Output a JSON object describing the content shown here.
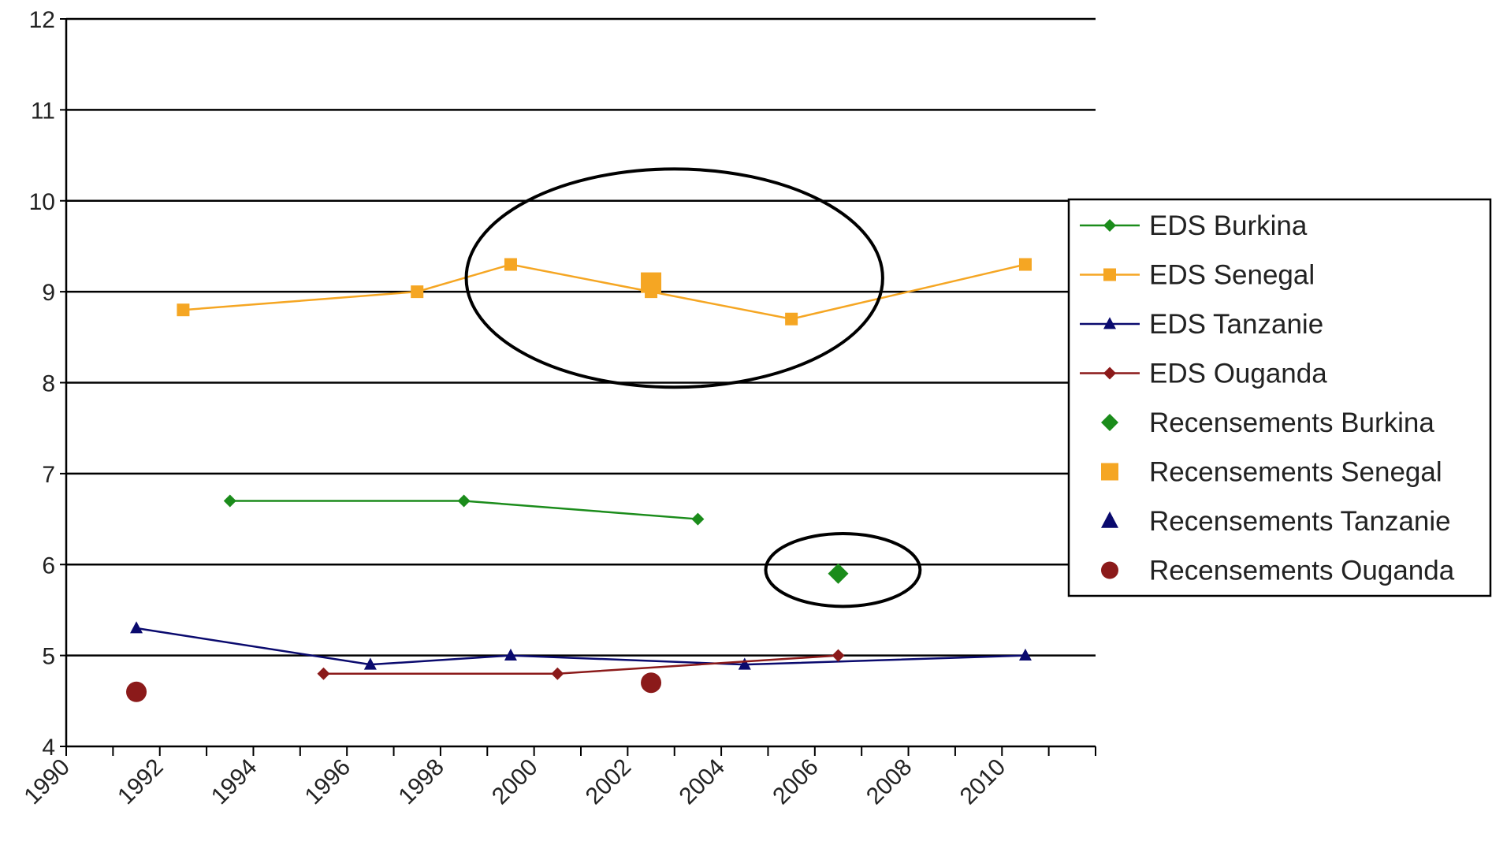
{
  "chart_data": {
    "type": "line",
    "title": "",
    "xlabel": "",
    "ylabel": "",
    "xlim": [
      1990,
      2012
    ],
    "ylim": [
      4,
      12
    ],
    "x_ticks": [
      "1990",
      "1992",
      "1994",
      "1996",
      "1998",
      "2000",
      "2002",
      "2004",
      "2006",
      "2008",
      "2010"
    ],
    "y_ticks": [
      "4",
      "5",
      "6",
      "7",
      "8",
      "9",
      "10",
      "11",
      "12"
    ],
    "grid": "horizontal",
    "legend_position": "right",
    "series": [
      {
        "name": "EDS Burkina",
        "kind": "line",
        "marker": "diamond",
        "color": "#1b8c1b",
        "points": [
          [
            1993.5,
            6.7
          ],
          [
            1998.5,
            6.7
          ],
          [
            2003.5,
            6.5
          ]
        ]
      },
      {
        "name": "EDS Senegal",
        "kind": "line",
        "marker": "square",
        "color": "#f5a623",
        "points": [
          [
            1992.5,
            8.8
          ],
          [
            1997.5,
            9.0
          ],
          [
            1999.5,
            9.3
          ],
          [
            2002.5,
            9.0
          ],
          [
            2005.5,
            8.7
          ],
          [
            2010.5,
            9.3
          ]
        ]
      },
      {
        "name": "EDS Tanzanie",
        "kind": "line",
        "marker": "triangle",
        "color": "#0a0a6e",
        "points": [
          [
            1991.5,
            5.3
          ],
          [
            1996.5,
            4.9
          ],
          [
            1999.5,
            5.0
          ],
          [
            2004.5,
            4.9
          ],
          [
            2010.5,
            5.0
          ]
        ]
      },
      {
        "name": "EDS Ouganda",
        "kind": "line",
        "marker": "diamond",
        "color": "#8b1a1a",
        "points": [
          [
            1995.5,
            4.8
          ],
          [
            2000.5,
            4.8
          ],
          [
            2006.5,
            5.0
          ]
        ]
      },
      {
        "name": "Recensements Burkina",
        "kind": "scatter",
        "marker": "diamond",
        "color": "#1b8c1b",
        "points": [
          [
            2006.5,
            5.9
          ]
        ]
      },
      {
        "name": "Recensements Senegal",
        "kind": "scatter",
        "marker": "square",
        "color": "#f5a623",
        "points": [
          [
            2002.5,
            9.1
          ]
        ]
      },
      {
        "name": "Recensements Tanzanie",
        "kind": "scatter",
        "marker": "triangle",
        "color": "#0a0a6e",
        "points": []
      },
      {
        "name": "Recensements Ouganda",
        "kind": "scatter",
        "marker": "circle",
        "color": "#8b1a1a",
        "points": [
          [
            1991.5,
            4.6
          ],
          [
            2002.5,
            4.7
          ]
        ]
      }
    ],
    "annotations": [
      {
        "shape": "ellipse",
        "center": [
          2003,
          9.15
        ],
        "radius_x_years": 4.45,
        "radius_y_values": 1.2
      },
      {
        "shape": "ellipse",
        "center": [
          2006.6,
          5.94
        ],
        "radius_x_years": 1.65,
        "radius_y_values": 0.4
      }
    ]
  }
}
